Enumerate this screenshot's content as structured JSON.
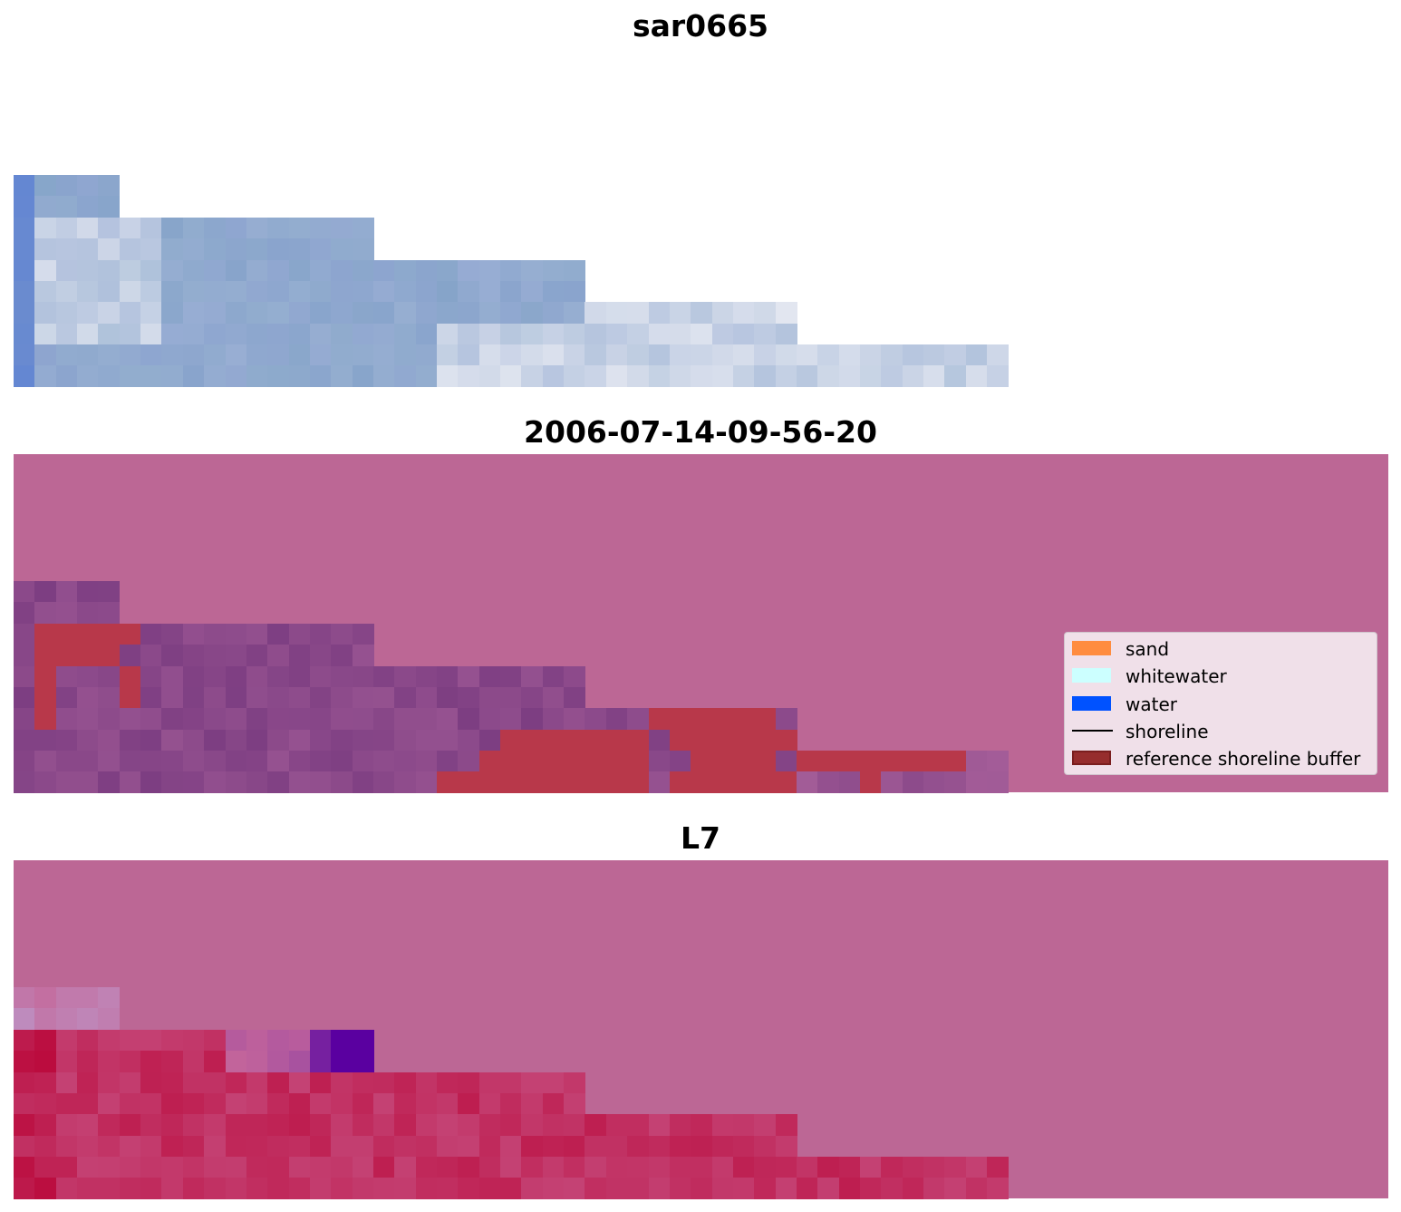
{
  "panels": [
    {
      "title": "sar0665"
    },
    {
      "title": "2006-07-14-09-56-20"
    },
    {
      "title": "L7"
    }
  ],
  "legend": {
    "items": [
      {
        "label": "sand",
        "color": "#ff8c3f",
        "kind": "patch"
      },
      {
        "label": "whitewater",
        "color": "#ccffff",
        "kind": "patch"
      },
      {
        "label": "water",
        "color": "#0052ff",
        "kind": "patch"
      },
      {
        "label": "shoreline",
        "color": "#000000",
        "kind": "line"
      },
      {
        "label": "reference shoreline buffer",
        "color": "#962d2d",
        "kind": "patch"
      }
    ]
  },
  "colors": {
    "background": "#ffffff",
    "classified_background": "#bc6795",
    "buffer": "#b8384a",
    "rgb_land": "#7f9fc6",
    "rgb_bright": "#e8eaf0",
    "ndwi_low": "#bc2451",
    "ndwi_deep": "#5a00a0"
  }
}
